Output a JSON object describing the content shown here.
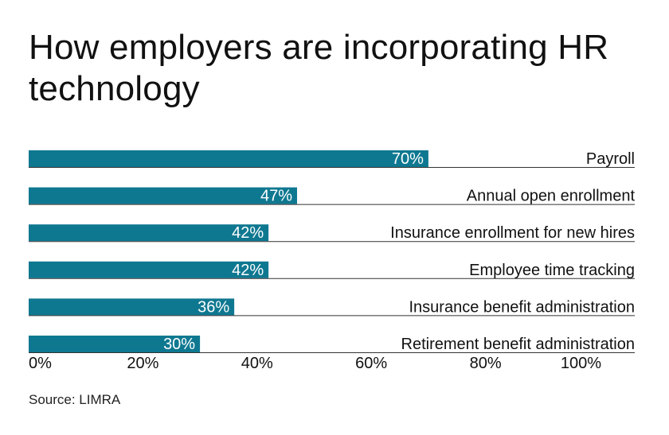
{
  "title": "How employers are incorporating HR technology",
  "source": "Source: LIMRA",
  "colors": {
    "bar": "#0f7891",
    "bar_label": "#ffffff",
    "text": "#111111",
    "rule": "#333333"
  },
  "chart_data": {
    "type": "bar",
    "orientation": "horizontal",
    "title": "How employers are incorporating HR technology",
    "categories": [
      "Payroll",
      "Annual open enrollment",
      "Insurance enrollment for new hires",
      "Employee time tracking",
      "Insurance benefit administration",
      "Retirement benefit administration"
    ],
    "values": [
      70,
      47,
      42,
      42,
      36,
      30
    ],
    "value_labels": [
      "70%",
      "47%",
      "42%",
      "42%",
      "36%",
      "30%"
    ],
    "xlim": [
      0,
      100
    ],
    "x_ticks": [
      0,
      20,
      40,
      60,
      80,
      100
    ],
    "x_tick_labels": [
      "0%",
      "20%",
      "40%",
      "60%",
      "80%",
      "100%"
    ],
    "grid": false,
    "legend": "none"
  }
}
